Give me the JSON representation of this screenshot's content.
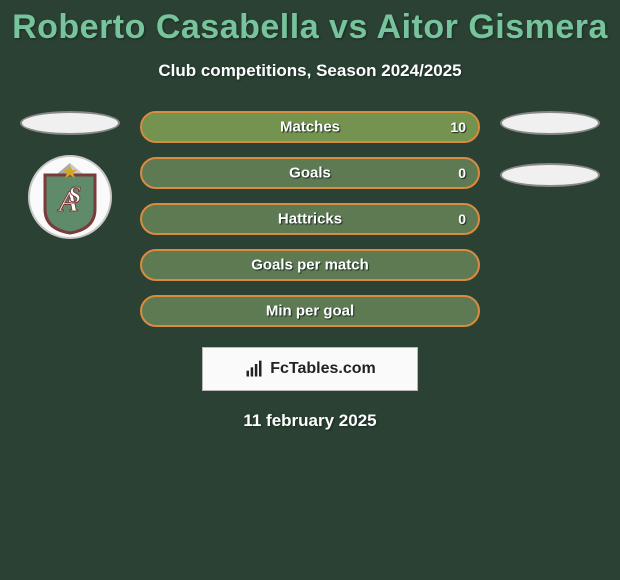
{
  "header": {
    "title": "Roberto Casabella vs Aitor Gismera",
    "subtitle": "Club competitions, Season 2024/2025",
    "title_color": "#77c49c",
    "subtitle_color": "#ffffff"
  },
  "background_color": "#2b4134",
  "left_side": {
    "ellipse_color": "#f0f0f0",
    "has_club_badge": true
  },
  "right_side": {
    "ellipse_color": "#f0f0f0",
    "ellipse2_color": "#f0f0f0",
    "has_club_badge": false
  },
  "stats": {
    "bar_border_color": "#d98c3e",
    "bar_bg_color": "#5d7a53",
    "bar_fill_color": "#74934f",
    "text_color": "#ffffff",
    "rows": [
      {
        "label": "Matches",
        "left_value": "",
        "right_value": "10",
        "left_pct": 0,
        "right_pct": 100
      },
      {
        "label": "Goals",
        "left_value": "",
        "right_value": "0",
        "left_pct": 0,
        "right_pct": 0
      },
      {
        "label": "Hattricks",
        "left_value": "",
        "right_value": "0",
        "left_pct": 0,
        "right_pct": 0
      },
      {
        "label": "Goals per match",
        "left_value": "",
        "right_value": "",
        "left_pct": 0,
        "right_pct": 0
      },
      {
        "label": "Min per goal",
        "left_value": "",
        "right_value": "",
        "left_pct": 0,
        "right_pct": 0
      }
    ]
  },
  "footer": {
    "brand_text": "FcTables.com",
    "date_text": "11 february 2025",
    "badge_bg": "#fafafa",
    "badge_border": "#b8b8b8",
    "badge_text_color": "#222222"
  },
  "club_badge_svg": {
    "shield_fill": "#5f8b6a",
    "shield_stroke": "#7b3b3b",
    "letters_color": "#7b3b3b",
    "star_color": "#d4a526"
  }
}
